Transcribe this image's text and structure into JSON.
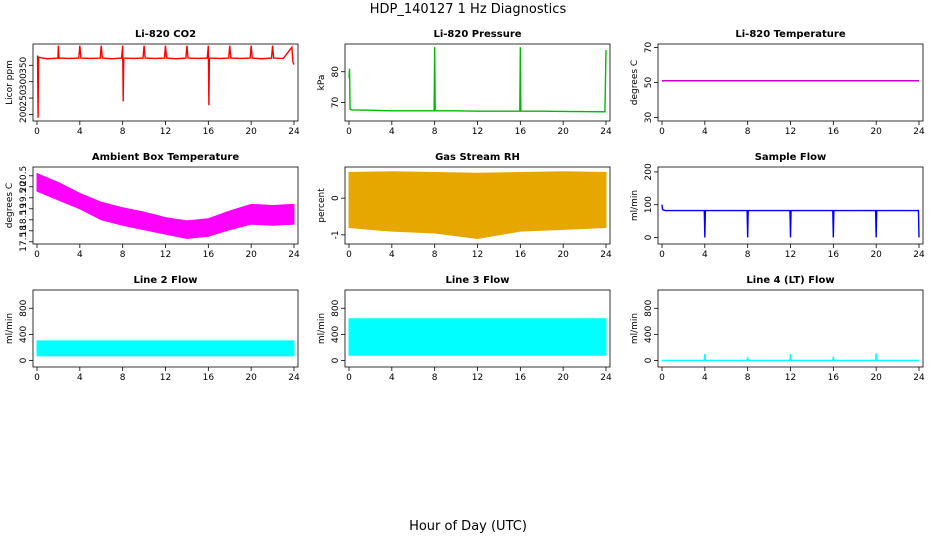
{
  "figure": {
    "title": "HDP_140127  1 Hz Diagnostics",
    "xlabel": "Hour of Day (UTC)"
  },
  "chart_data": [
    {
      "type": "line",
      "title": "Li-820 CO2",
      "ylabel": "Licor ppm",
      "color": "#ff0000",
      "xlim": [
        0,
        24
      ],
      "ylim": [
        180,
        415
      ],
      "xticks": [
        0,
        4,
        8,
        12,
        16,
        20,
        24
      ],
      "yticks": [
        200,
        250,
        300,
        350
      ],
      "x": [
        0.05,
        0.1,
        0.15,
        0.5,
        1.0,
        1.5,
        1.95,
        2.0,
        2.05,
        3.0,
        3.9,
        4.0,
        4.1,
        5.0,
        5.9,
        6.0,
        6.1,
        7.0,
        7.9,
        8.0,
        8.05,
        8.1,
        9.0,
        9.9,
        10.0,
        10.1,
        11.0,
        11.9,
        12.0,
        12.1,
        13.0,
        13.9,
        14.0,
        14.1,
        15.0,
        15.9,
        16.0,
        16.05,
        16.1,
        17.0,
        17.9,
        18.0,
        18.1,
        19.0,
        19.9,
        20.0,
        20.1,
        21.0,
        21.9,
        22.0,
        22.1,
        23.0,
        23.8,
        23.9,
        24.0
      ],
      "y": [
        380,
        190,
        375,
        372,
        370,
        371,
        372,
        410,
        372,
        371,
        372,
        410,
        372,
        371,
        372,
        410,
        372,
        370,
        372,
        410,
        240,
        372,
        371,
        372,
        410,
        372,
        371,
        372,
        410,
        372,
        370,
        372,
        410,
        372,
        371,
        372,
        410,
        228,
        372,
        371,
        372,
        410,
        372,
        371,
        372,
        410,
        372,
        370,
        372,
        410,
        372,
        371,
        405,
        360,
        352
      ]
    },
    {
      "type": "line",
      "title": "Li-820 Pressure",
      "ylabel": "kPa",
      "color": "#00bb00",
      "xlim": [
        0,
        24
      ],
      "ylim": [
        64,
        89
      ],
      "xticks": [
        0,
        4,
        8,
        12,
        16,
        20,
        24
      ],
      "yticks": [
        70,
        80
      ],
      "x": [
        0.0,
        0.05,
        0.1,
        0.3,
        2.0,
        4.0,
        7.95,
        8.0,
        8.05,
        10.0,
        12.0,
        15.95,
        16.0,
        16.05,
        18.0,
        20.0,
        23.9,
        24.0
      ],
      "y": [
        78,
        81,
        67.8,
        67.6,
        67.5,
        67.3,
        67.3,
        88,
        67.3,
        67.3,
        67.2,
        67.2,
        88,
        67.2,
        67.2,
        67.1,
        67.0,
        87
      ]
    },
    {
      "type": "line",
      "title": "Li-820 Temperature",
      "ylabel": "degrees C",
      "color": "#cc00cc",
      "xlim": [
        0,
        24
      ],
      "ylim": [
        28,
        72
      ],
      "xticks": [
        0,
        4,
        8,
        12,
        16,
        20,
        24
      ],
      "yticks": [
        30,
        50,
        70
      ],
      "x": [
        0,
        24
      ],
      "y": [
        51,
        51
      ]
    },
    {
      "type": "area",
      "title": "Ambient Box Temperature",
      "ylabel": "degrees C",
      "color": "#ff00ff",
      "xlim": [
        0,
        24
      ],
      "ylim": [
        17.4,
        20.9
      ],
      "xticks": [
        0,
        4,
        8,
        12,
        16,
        20,
        24
      ],
      "yticks": [
        17.5,
        18.0,
        18.5,
        19.0,
        19.5,
        20.0,
        20.5
      ],
      "x": [
        0,
        2,
        4,
        6,
        8,
        10,
        12,
        14,
        16,
        18,
        20,
        22,
        24
      ],
      "y_max": [
        20.6,
        20.2,
        19.7,
        19.3,
        19.05,
        18.85,
        18.6,
        18.45,
        18.55,
        18.9,
        19.2,
        19.15,
        19.2
      ],
      "y_min": [
        19.8,
        19.4,
        19.0,
        18.5,
        18.25,
        18.05,
        17.85,
        17.65,
        17.75,
        18.05,
        18.3,
        18.25,
        18.3
      ]
    },
    {
      "type": "area",
      "title": "Gas Stream RH",
      "ylabel": "percent",
      "color": "#e6a800",
      "xlim": [
        0,
        24
      ],
      "ylim": [
        -1.25,
        0.85
      ],
      "xticks": [
        0,
        4,
        8,
        12,
        16,
        20,
        24
      ],
      "yticks": [
        -1.0,
        0.0
      ],
      "x": [
        0,
        4,
        8,
        12,
        16,
        20,
        24
      ],
      "y_max": [
        0.7,
        0.72,
        0.7,
        0.68,
        0.7,
        0.72,
        0.7
      ],
      "y_min": [
        -0.8,
        -0.9,
        -0.95,
        -1.1,
        -0.9,
        -0.85,
        -0.8
      ]
    },
    {
      "type": "line",
      "title": "Sample Flow",
      "ylabel": "ml/min",
      "color": "#0000ee",
      "xlim": [
        0,
        24
      ],
      "ylim": [
        -20,
        215
      ],
      "xticks": [
        0,
        4,
        8,
        12,
        16,
        20,
        24
      ],
      "yticks": [
        0,
        100,
        200
      ],
      "x": [
        0.0,
        0.05,
        0.3,
        3.95,
        4.0,
        4.05,
        7.95,
        8.0,
        8.05,
        11.95,
        12.0,
        12.05,
        15.95,
        16.0,
        16.05,
        19.95,
        20.0,
        20.05,
        23.95,
        24.0
      ],
      "y": [
        100,
        85,
        82,
        82,
        0,
        82,
        82,
        0,
        82,
        82,
        0,
        82,
        82,
        0,
        82,
        82,
        0,
        82,
        82,
        0
      ]
    },
    {
      "type": "area",
      "title": "Line 2 Flow",
      "ylabel": "ml/min",
      "color": "#00ffff",
      "xlim": [
        0,
        24
      ],
      "ylim": [
        -100,
        1080
      ],
      "xticks": [
        0,
        4,
        8,
        12,
        16,
        20,
        24
      ],
      "yticks": [
        0,
        400,
        800
      ],
      "x": [
        0,
        24
      ],
      "y_max": [
        300,
        300
      ],
      "y_min": [
        70,
        70
      ]
    },
    {
      "type": "area",
      "title": "Line 3 Flow",
      "ylabel": "ml/min",
      "color": "#00ffff",
      "xlim": [
        0,
        24
      ],
      "ylim": [
        -100,
        1080
      ],
      "xticks": [
        0,
        4,
        8,
        12,
        16,
        20,
        24
      ],
      "yticks": [
        0,
        400,
        800
      ],
      "x": [
        0,
        24
      ],
      "y_max": [
        640,
        640
      ],
      "y_min": [
        80,
        80
      ]
    },
    {
      "type": "line",
      "title": "Line 4 (LT) Flow",
      "ylabel": "ml/min",
      "color": "#00ffff",
      "xlim": [
        0,
        24
      ],
      "ylim": [
        -100,
        1080
      ],
      "xticks": [
        0,
        4,
        8,
        12,
        16,
        20,
        24
      ],
      "yticks": [
        0,
        400,
        800
      ],
      "x": [
        0,
        3.95,
        4.0,
        4.05,
        7.95,
        8.0,
        8.05,
        11.95,
        12.0,
        12.05,
        15.95,
        16.0,
        16.05,
        19.95,
        20.0,
        20.05,
        24
      ],
      "y": [
        0,
        0,
        100,
        0,
        0,
        50,
        0,
        0,
        100,
        0,
        0,
        60,
        0,
        0,
        110,
        0,
        0
      ]
    }
  ]
}
